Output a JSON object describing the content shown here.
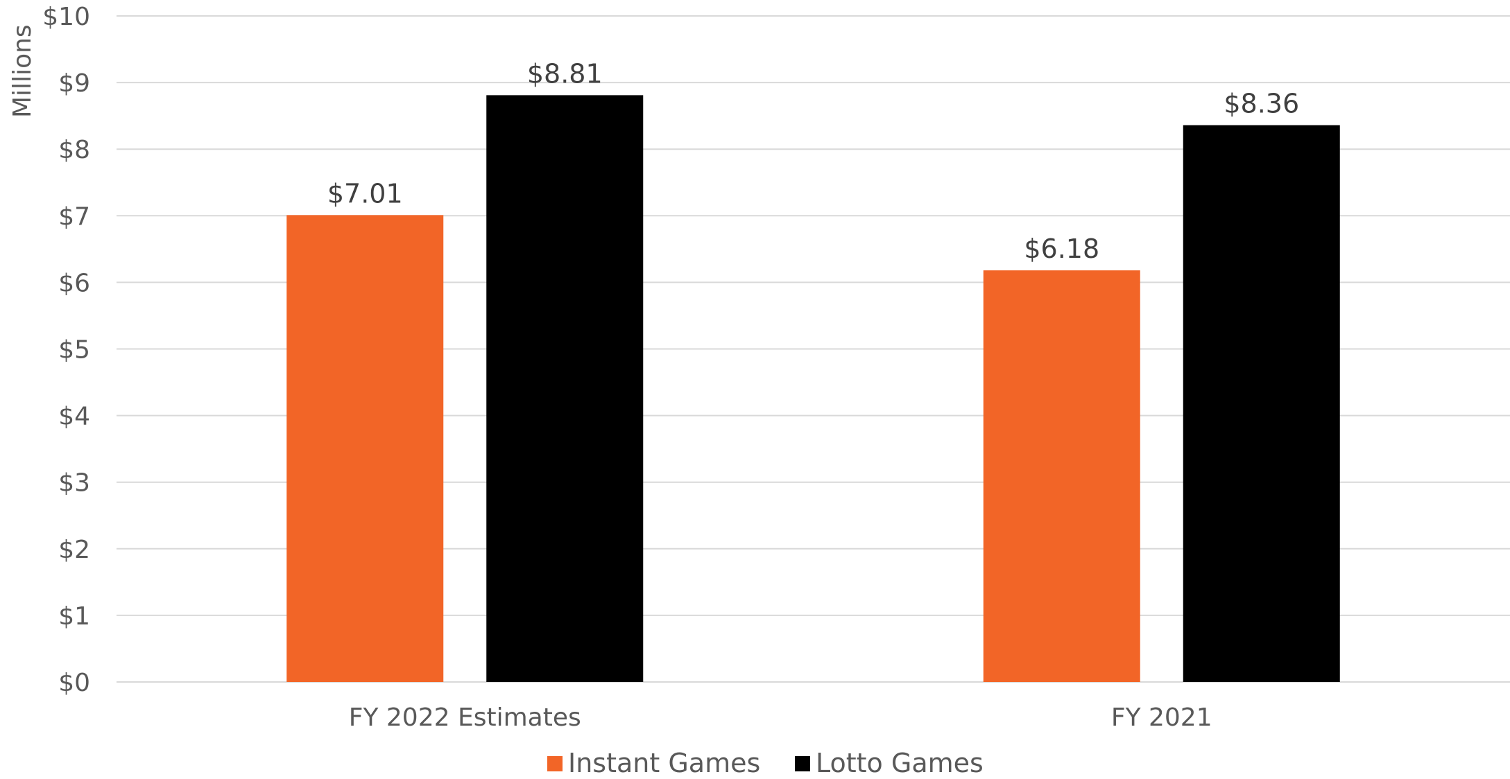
{
  "chart_data": {
    "type": "bar",
    "categories": [
      "FY 2022 Estimates",
      "FY 2021"
    ],
    "series": [
      {
        "name": "Instant Games",
        "values": [
          7.01,
          6.18
        ],
        "color": "#f26527"
      },
      {
        "name": "Lotto Games",
        "values": [
          8.81,
          8.36
        ],
        "color": "#000000"
      }
    ],
    "data_labels": [
      [
        "$7.01",
        "$6.18"
      ],
      [
        "$8.81",
        "$8.36"
      ]
    ],
    "ylim": [
      0,
      10
    ],
    "yticks": [
      0,
      1,
      2,
      3,
      4,
      5,
      6,
      7,
      8,
      9,
      10
    ],
    "ytick_labels": [
      "$0",
      "$1",
      "$2",
      "$3",
      "$4",
      "$5",
      "$6",
      "$7",
      "$8",
      "$9",
      "$10"
    ],
    "unit_label": "Millions",
    "grid": true,
    "legend": "bottom"
  }
}
